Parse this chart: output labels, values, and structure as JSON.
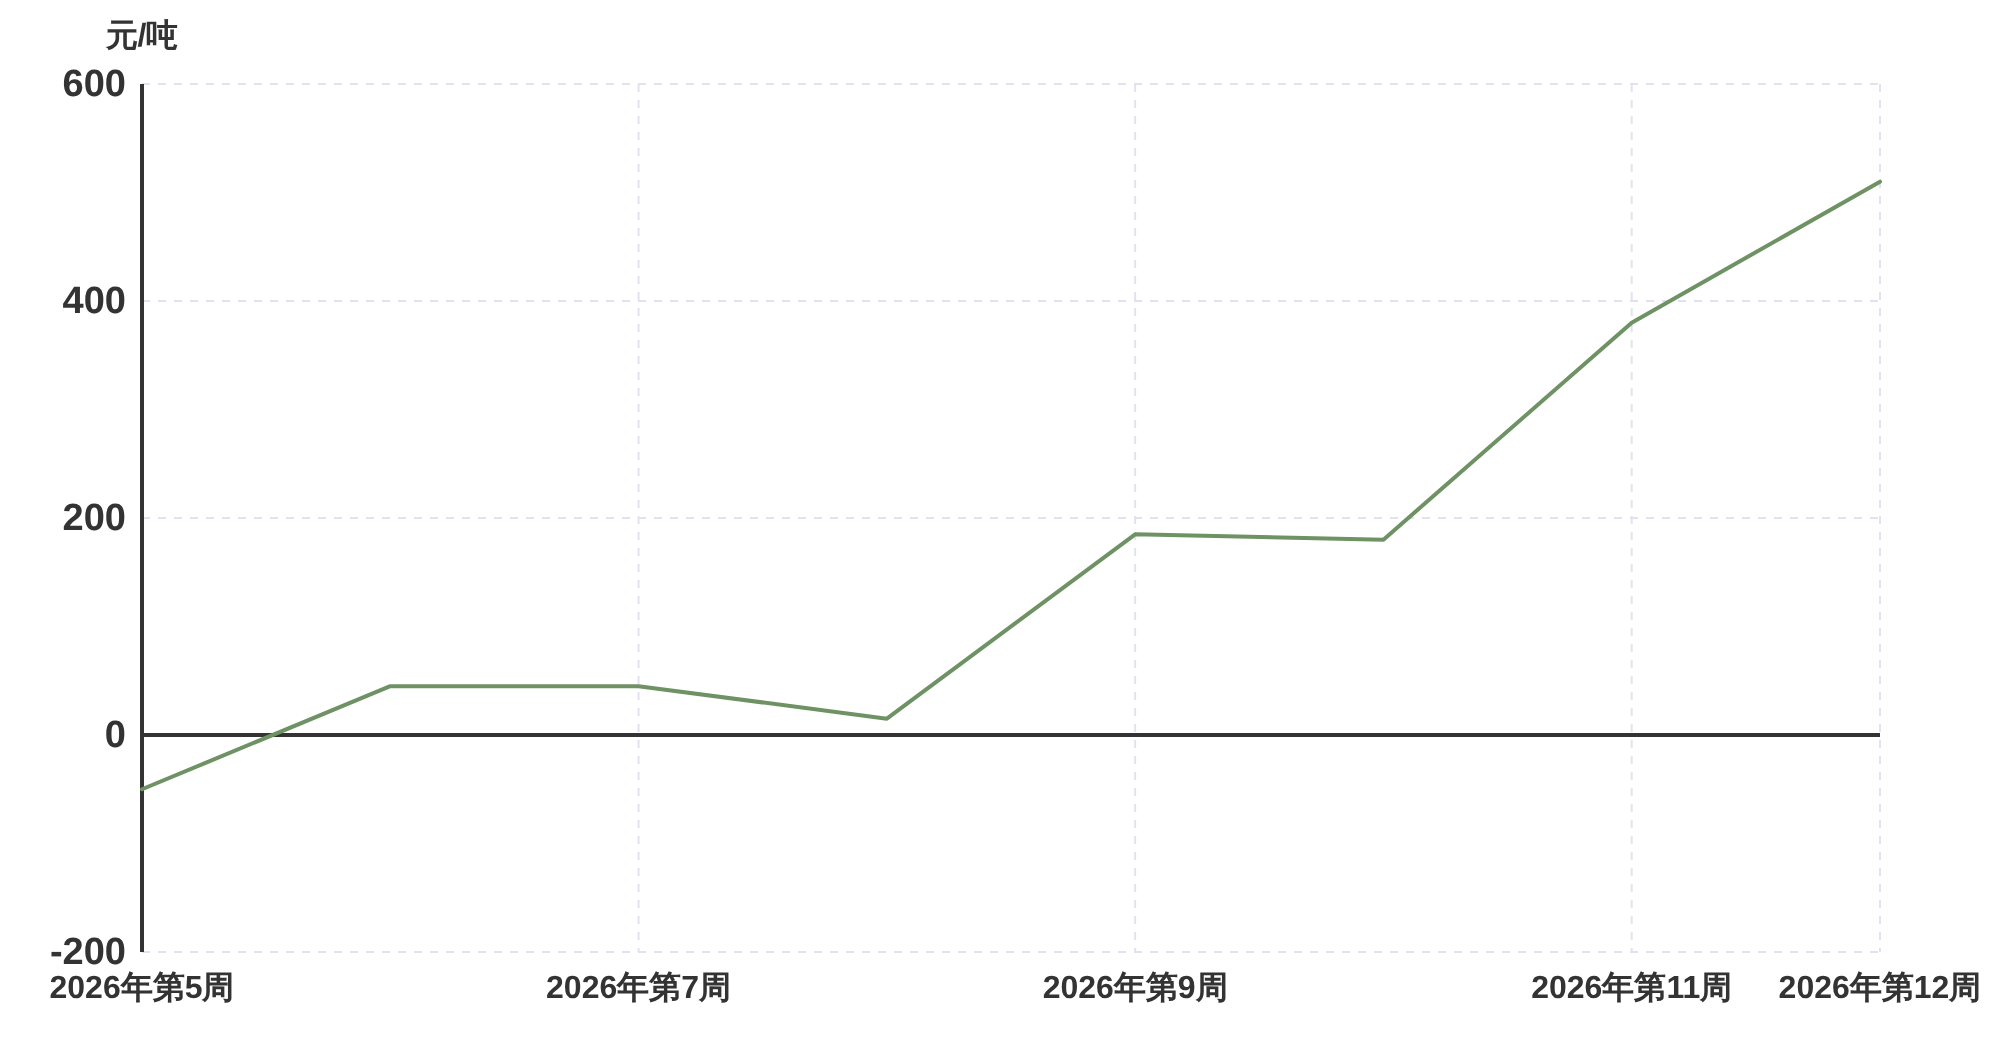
{
  "chart_data": {
    "type": "line",
    "ylabel": "元/吨",
    "categories": [
      "2026年第5周",
      null,
      "2026年第7周",
      null,
      "2026年第9周",
      null,
      "2026年第11周",
      "2026年第12周"
    ],
    "series": [
      {
        "color": "#6e9264",
        "values": [
          -50,
          45,
          45,
          15,
          185,
          180,
          380,
          510
        ]
      }
    ],
    "ylim": [
      -200,
      600
    ],
    "yticks": [
      -200,
      0,
      200,
      400,
      600
    ],
    "grid": true,
    "ref_lines": [
      {
        "axis": "y",
        "value": 0,
        "color": "#333333"
      }
    ]
  }
}
